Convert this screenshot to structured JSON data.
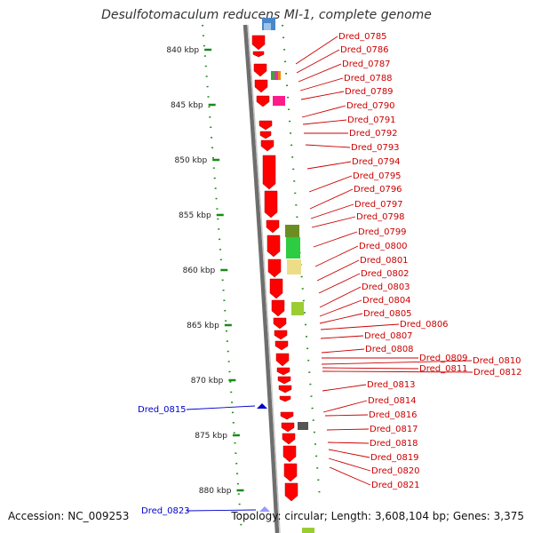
{
  "title": "Desulfotomaculum reducens MI-1, complete genome",
  "footer": {
    "accession": "Accession: NC_009253",
    "stats": "Topology: circular; Length: 3,608,104 bp; Genes: 3,375"
  },
  "colors": {
    "gene_forward": "#ff0000",
    "gene_label_forward": "#cc0000",
    "gene_reverse": "#0000cc",
    "backbone": "#8c8c8c",
    "ticks": "#1a8a1a"
  },
  "ticks": [
    {
      "label": "840 kbp"
    },
    {
      "label": "845 kbp"
    },
    {
      "label": "850 kbp"
    },
    {
      "label": "855 kbp"
    },
    {
      "label": "860 kbp"
    },
    {
      "label": "865 kbp"
    },
    {
      "label": "870 kbp"
    },
    {
      "label": "875 kbp"
    },
    {
      "label": "880 kbp"
    }
  ],
  "forward_genes": [
    "Dred_0785",
    "Dred_0786",
    "Dred_0787",
    "Dred_0788",
    "Dred_0789",
    "Dred_0790",
    "Dred_0791",
    "Dred_0792",
    "Dred_0793",
    "Dred_0794",
    "Dred_0795",
    "Dred_0796",
    "Dred_0797",
    "Dred_0798",
    "Dred_0799",
    "Dred_0800",
    "Dred_0801",
    "Dred_0802",
    "Dred_0803",
    "Dred_0804",
    "Dred_0805",
    "Dred_0806",
    "Dred_0807",
    "Dred_0808",
    "Dred_0809",
    "Dred_0810",
    "Dred_0811",
    "Dred_0812",
    "Dred_0813",
    "Dred_0814",
    "Dred_0816",
    "Dred_0817",
    "Dred_0818",
    "Dred_0819",
    "Dred_0820",
    "Dred_0821"
  ],
  "reverse_genes": [
    "Dred_0815",
    "Dred_0823"
  ]
}
